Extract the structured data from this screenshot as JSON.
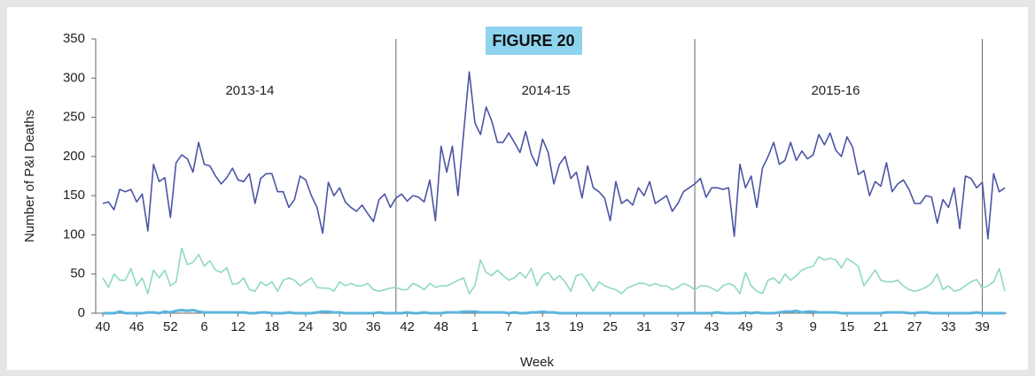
{
  "chart_data": {
    "type": "line",
    "title": "FIGURE 20",
    "ylabel": "Number of P&I Deaths",
    "xlabel": "Week",
    "annotations": [
      "2013-14",
      "2014-15",
      "2015-16"
    ],
    "categories": [
      "40",
      null,
      null,
      null,
      null,
      null,
      "46",
      null,
      null,
      null,
      null,
      null,
      "52",
      null,
      null,
      null,
      null,
      null,
      "6",
      null,
      null,
      null,
      null,
      null,
      "12",
      null,
      null,
      null,
      null,
      null,
      "18",
      null,
      null,
      null,
      null,
      null,
      "24",
      null,
      null,
      null,
      null,
      null,
      "30",
      null,
      null,
      null,
      null,
      null,
      "36",
      null,
      null,
      null,
      null,
      null,
      "42",
      null,
      null,
      null,
      null,
      null,
      "48",
      null,
      null,
      null,
      null,
      null,
      "1",
      null,
      null,
      null,
      null,
      null,
      "7",
      null,
      null,
      null,
      null,
      null,
      "13",
      null,
      null,
      null,
      null,
      null,
      "19",
      null,
      null,
      null,
      null,
      null,
      "25",
      null,
      null,
      null,
      null,
      null,
      "31",
      null,
      null,
      null,
      null,
      null,
      "37",
      null,
      null,
      null,
      null,
      null,
      "43",
      null,
      null,
      null,
      null,
      null,
      "49",
      null,
      null,
      null,
      null,
      null,
      "3",
      null,
      null,
      null,
      null,
      null,
      "9",
      null,
      null,
      null,
      null,
      null,
      "15",
      null,
      null,
      null,
      null,
      null,
      "21",
      null,
      null,
      null,
      null,
      null,
      "27",
      null,
      null,
      null,
      null,
      null,
      "33",
      null,
      null,
      null,
      null,
      null,
      "39",
      null,
      null,
      null,
      null
    ],
    "series": [
      {
        "color": "#4b55a5",
        "values": [
          140,
          142,
          132,
          158,
          155,
          158,
          142,
          152,
          105,
          190,
          168,
          173,
          122,
          192,
          202,
          197,
          180,
          218,
          190,
          188,
          175,
          165,
          173,
          185,
          170,
          168,
          178,
          140,
          172,
          178,
          178,
          155,
          155,
          135,
          145,
          175,
          170,
          150,
          135,
          102,
          167,
          150,
          160,
          142,
          135,
          130,
          138,
          127,
          117,
          145,
          152,
          135,
          147,
          152,
          143,
          150,
          148,
          142,
          170,
          118,
          213,
          180,
          213,
          150,
          230,
          308,
          243,
          228,
          263,
          245,
          218,
          218,
          230,
          218,
          205,
          232,
          203,
          188,
          222,
          205,
          165,
          190,
          200,
          172,
          180,
          147,
          188,
          160,
          155,
          147,
          118,
          168,
          140,
          145,
          138,
          160,
          150,
          168,
          140,
          145,
          150,
          130,
          140,
          155,
          160,
          165,
          172,
          148,
          160,
          160,
          158,
          160,
          98,
          190,
          160,
          175,
          135,
          185,
          200,
          218,
          190,
          195,
          218,
          195,
          207,
          197,
          202,
          228,
          215,
          230,
          208,
          200,
          225,
          212,
          177,
          182,
          150,
          168,
          162,
          192,
          155,
          165,
          170,
          158,
          140,
          140,
          150,
          148,
          115,
          145,
          135,
          160,
          108,
          175,
          172,
          160,
          167,
          95,
          178,
          155,
          160
        ]
      },
      {
        "color": "#8fd9c2",
        "values": [
          45,
          33,
          50,
          42,
          42,
          57,
          35,
          45,
          25,
          55,
          45,
          55,
          35,
          40,
          83,
          62,
          65,
          75,
          60,
          67,
          55,
          52,
          58,
          37,
          38,
          45,
          30,
          28,
          40,
          35,
          40,
          28,
          42,
          45,
          42,
          35,
          40,
          45,
          33,
          32,
          32,
          28,
          40,
          35,
          38,
          35,
          35,
          38,
          30,
          28,
          30,
          32,
          33,
          30,
          30,
          38,
          35,
          30,
          38,
          33,
          35,
          35,
          38,
          42,
          45,
          25,
          35,
          68,
          52,
          48,
          55,
          48,
          42,
          45,
          52,
          45,
          57,
          35,
          48,
          52,
          42,
          48,
          40,
          28,
          48,
          50,
          40,
          28,
          40,
          35,
          32,
          30,
          25,
          32,
          35,
          38,
          38,
          35,
          38,
          35,
          35,
          30,
          33,
          38,
          35,
          30,
          35,
          35,
          32,
          28,
          35,
          38,
          35,
          25,
          52,
          35,
          28,
          25,
          42,
          45,
          38,
          50,
          42,
          48,
          55,
          58,
          60,
          72,
          68,
          70,
          68,
          58,
          70,
          65,
          60,
          35,
          45,
          55,
          42,
          40,
          40,
          42,
          35,
          30,
          28,
          30,
          33,
          38,
          50,
          30,
          35,
          28,
          30,
          35,
          40,
          43,
          32,
          35,
          40,
          57,
          28
        ]
      },
      {
        "color": "#5bb4dc",
        "values": [
          0,
          0,
          0,
          2,
          0,
          0,
          0,
          0,
          1,
          1,
          0,
          2,
          1,
          3,
          4,
          3,
          4,
          2,
          1,
          1,
          1,
          1,
          1,
          1,
          1,
          1,
          0,
          0,
          1,
          1,
          0,
          0,
          0,
          1,
          0,
          0,
          0,
          0,
          1,
          2,
          2,
          1,
          1,
          0,
          0,
          0,
          0,
          0,
          0,
          1,
          0,
          0,
          0,
          0,
          1,
          0,
          0,
          1,
          0,
          0,
          0,
          1,
          1,
          1,
          2,
          2,
          2,
          1,
          1,
          1,
          1,
          1,
          0,
          1,
          0,
          0,
          1,
          1,
          2,
          1,
          1,
          0,
          0,
          0,
          0,
          0,
          0,
          0,
          0,
          0,
          0,
          0,
          0,
          0,
          0,
          0,
          0,
          0,
          0,
          0,
          0,
          0,
          0,
          0,
          0,
          0,
          0,
          0,
          0,
          1,
          0,
          0,
          0,
          0,
          1,
          0,
          1,
          0,
          0,
          0,
          1,
          2,
          2,
          3,
          1,
          2,
          2,
          1,
          1,
          1,
          1,
          0,
          0,
          0,
          0,
          0,
          0,
          0,
          0,
          1,
          1,
          1,
          1,
          0,
          0,
          1,
          1,
          0,
          0,
          0,
          0,
          0,
          0,
          0,
          0,
          1,
          0,
          0,
          0,
          0,
          0
        ]
      }
    ],
    "ylim": [
      0,
      350
    ],
    "yticks": [
      0,
      50,
      100,
      150,
      200,
      250,
      300,
      350
    ]
  }
}
